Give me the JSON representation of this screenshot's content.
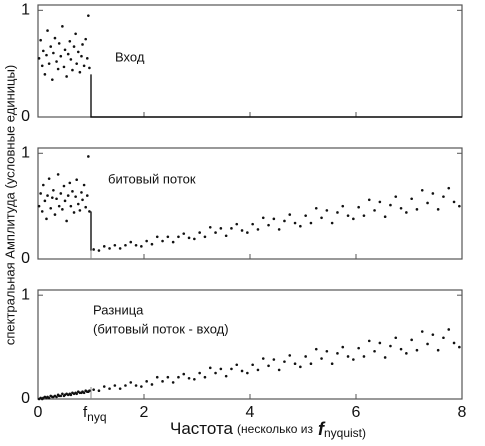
{
  "chart_data": [
    {
      "type": "scatter",
      "annotations": [
        "Вход"
      ],
      "xlim": [
        0,
        8
      ],
      "ylim": [
        0,
        1.05
      ],
      "yticks": [
        0,
        1
      ],
      "x": [
        0.02,
        0.05,
        0.08,
        0.1,
        0.13,
        0.16,
        0.18,
        0.21,
        0.24,
        0.27,
        0.29,
        0.32,
        0.35,
        0.38,
        0.4,
        0.43,
        0.46,
        0.49,
        0.51,
        0.54,
        0.57,
        0.6,
        0.62,
        0.65,
        0.68,
        0.71,
        0.73,
        0.76,
        0.79,
        0.82,
        0.84,
        0.87,
        0.9,
        0.93,
        0.95,
        0.97
      ],
      "values": [
        0.55,
        0.72,
        0.48,
        0.62,
        0.4,
        0.58,
        0.81,
        0.5,
        0.66,
        0.35,
        0.6,
        0.74,
        0.52,
        0.45,
        0.69,
        0.57,
        0.85,
        0.47,
        0.63,
        0.38,
        0.59,
        0.71,
        0.54,
        0.44,
        0.66,
        0.78,
        0.5,
        0.61,
        0.42,
        0.57,
        0.68,
        0.48,
        0.73,
        0.55,
        0.95,
        0.46
      ],
      "line": {
        "x": [
          1,
          1,
          8
        ],
        "values": [
          0.4,
          0,
          0
        ]
      }
    },
    {
      "type": "scatter",
      "annotations": [
        "битовый поток"
      ],
      "xlim": [
        0,
        8
      ],
      "ylim": [
        0,
        1.05
      ],
      "yticks": [
        0,
        1
      ],
      "x": [
        0.02,
        0.05,
        0.08,
        0.1,
        0.13,
        0.16,
        0.18,
        0.21,
        0.24,
        0.27,
        0.29,
        0.32,
        0.35,
        0.38,
        0.4,
        0.43,
        0.46,
        0.49,
        0.51,
        0.54,
        0.57,
        0.6,
        0.62,
        0.65,
        0.68,
        0.71,
        0.73,
        0.76,
        0.79,
        0.82,
        0.84,
        0.87,
        0.9,
        0.93,
        0.95,
        0.97,
        1.05,
        1.15,
        1.25,
        1.35,
        1.45,
        1.55,
        1.65,
        1.75,
        1.85,
        1.95,
        2.05,
        2.15,
        2.25,
        2.35,
        2.45,
        2.55,
        2.65,
        2.75,
        2.85,
        2.95,
        3.05,
        3.15,
        3.25,
        3.35,
        3.45,
        3.55,
        3.65,
        3.75,
        3.85,
        3.95,
        4.05,
        4.15,
        4.25,
        4.35,
        4.45,
        4.55,
        4.65,
        4.75,
        4.85,
        4.95,
        5.05,
        5.15,
        5.25,
        5.35,
        5.45,
        5.55,
        5.65,
        5.75,
        5.85,
        5.95,
        6.05,
        6.15,
        6.25,
        6.35,
        6.45,
        6.55,
        6.65,
        6.75,
        6.85,
        6.95,
        7.05,
        7.15,
        7.25,
        7.35,
        7.45,
        7.55,
        7.65,
        7.75,
        7.85,
        7.95
      ],
      "values": [
        0.5,
        0.62,
        0.45,
        0.7,
        0.55,
        0.38,
        0.6,
        0.76,
        0.48,
        0.58,
        0.65,
        0.42,
        0.57,
        0.8,
        0.5,
        0.62,
        0.47,
        0.69,
        0.55,
        0.36,
        0.6,
        0.72,
        0.5,
        0.64,
        0.44,
        0.59,
        0.75,
        0.52,
        0.46,
        0.63,
        0.56,
        0.7,
        0.49,
        0.6,
        0.97,
        0.45,
        0.09,
        0.08,
        0.12,
        0.1,
        0.13,
        0.1,
        0.13,
        0.16,
        0.13,
        0.12,
        0.17,
        0.14,
        0.21,
        0.17,
        0.21,
        0.16,
        0.21,
        0.24,
        0.2,
        0.19,
        0.25,
        0.21,
        0.3,
        0.25,
        0.29,
        0.22,
        0.29,
        0.33,
        0.27,
        0.25,
        0.33,
        0.28,
        0.39,
        0.32,
        0.38,
        0.28,
        0.36,
        0.42,
        0.34,
        0.31,
        0.41,
        0.34,
        0.48,
        0.39,
        0.46,
        0.34,
        0.44,
        0.5,
        0.41,
        0.38,
        0.49,
        0.41,
        0.56,
        0.46,
        0.54,
        0.4,
        0.51,
        0.59,
        0.48,
        0.44,
        0.57,
        0.47,
        0.65,
        0.53,
        0.62,
        0.47,
        0.59,
        0.67,
        0.54,
        0.5
      ],
      "line": {
        "x": [
          1,
          1
        ],
        "values": [
          0.45,
          0.08
        ]
      }
    },
    {
      "type": "scatter",
      "annotations": [
        "Разница",
        "(битовый поток - вход)"
      ],
      "xlim": [
        0,
        8
      ],
      "ylim": [
        0,
        1.05
      ],
      "yticks": [
        0,
        1
      ],
      "xticks": [
        0,
        2,
        4,
        6,
        8
      ],
      "nyquist_tick": {
        "value": 1,
        "label": "f",
        "subscript": "nyq"
      },
      "xlabel": [
        "Частота",
        "(несколько из",
        "f",
        "nyquist)"
      ],
      "ylabel": "спектральная Амплитуда (условные единицы)",
      "x": [
        0.02,
        0.05,
        0.08,
        0.1,
        0.13,
        0.16,
        0.18,
        0.21,
        0.24,
        0.27,
        0.29,
        0.32,
        0.35,
        0.38,
        0.4,
        0.43,
        0.46,
        0.49,
        0.51,
        0.54,
        0.57,
        0.6,
        0.62,
        0.65,
        0.68,
        0.71,
        0.73,
        0.76,
        0.79,
        0.82,
        0.84,
        0.87,
        0.9,
        0.93,
        0.95,
        0.97,
        1.05,
        1.15,
        1.25,
        1.35,
        1.45,
        1.55,
        1.65,
        1.75,
        1.85,
        1.95,
        2.05,
        2.15,
        2.25,
        2.35,
        2.45,
        2.55,
        2.65,
        2.75,
        2.85,
        2.95,
        3.05,
        3.15,
        3.25,
        3.35,
        3.45,
        3.55,
        3.65,
        3.75,
        3.85,
        3.95,
        4.05,
        4.15,
        4.25,
        4.35,
        4.45,
        4.55,
        4.65,
        4.75,
        4.85,
        4.95,
        5.05,
        5.15,
        5.25,
        5.35,
        5.45,
        5.55,
        5.65,
        5.75,
        5.85,
        5.95,
        6.05,
        6.15,
        6.25,
        6.35,
        6.45,
        6.55,
        6.65,
        6.75,
        6.85,
        6.95,
        7.05,
        7.15,
        7.25,
        7.35,
        7.45,
        7.55,
        7.65,
        7.75,
        7.85,
        7.95
      ],
      "values": [
        0,
        0.01,
        0,
        0.01,
        0.02,
        0.01,
        0.02,
        0.01,
        0.03,
        0.02,
        0.02,
        0.03,
        0.02,
        0.04,
        0.03,
        0.03,
        0.05,
        0.03,
        0.04,
        0.05,
        0.04,
        0.05,
        0.04,
        0.06,
        0.05,
        0.06,
        0.05,
        0.07,
        0.06,
        0.06,
        0.07,
        0.06,
        0.08,
        0.07,
        0.07,
        0.08,
        0.09,
        0.08,
        0.12,
        0.1,
        0.13,
        0.1,
        0.13,
        0.16,
        0.13,
        0.12,
        0.17,
        0.14,
        0.21,
        0.17,
        0.21,
        0.16,
        0.21,
        0.24,
        0.2,
        0.19,
        0.25,
        0.21,
        0.3,
        0.25,
        0.29,
        0.22,
        0.29,
        0.33,
        0.27,
        0.25,
        0.33,
        0.28,
        0.39,
        0.32,
        0.38,
        0.28,
        0.36,
        0.42,
        0.34,
        0.31,
        0.41,
        0.34,
        0.48,
        0.39,
        0.46,
        0.34,
        0.44,
        0.5,
        0.41,
        0.38,
        0.49,
        0.41,
        0.56,
        0.46,
        0.54,
        0.4,
        0.51,
        0.59,
        0.48,
        0.44,
        0.57,
        0.47,
        0.65,
        0.53,
        0.62,
        0.47,
        0.59,
        0.67,
        0.54,
        0.5
      ]
    }
  ]
}
